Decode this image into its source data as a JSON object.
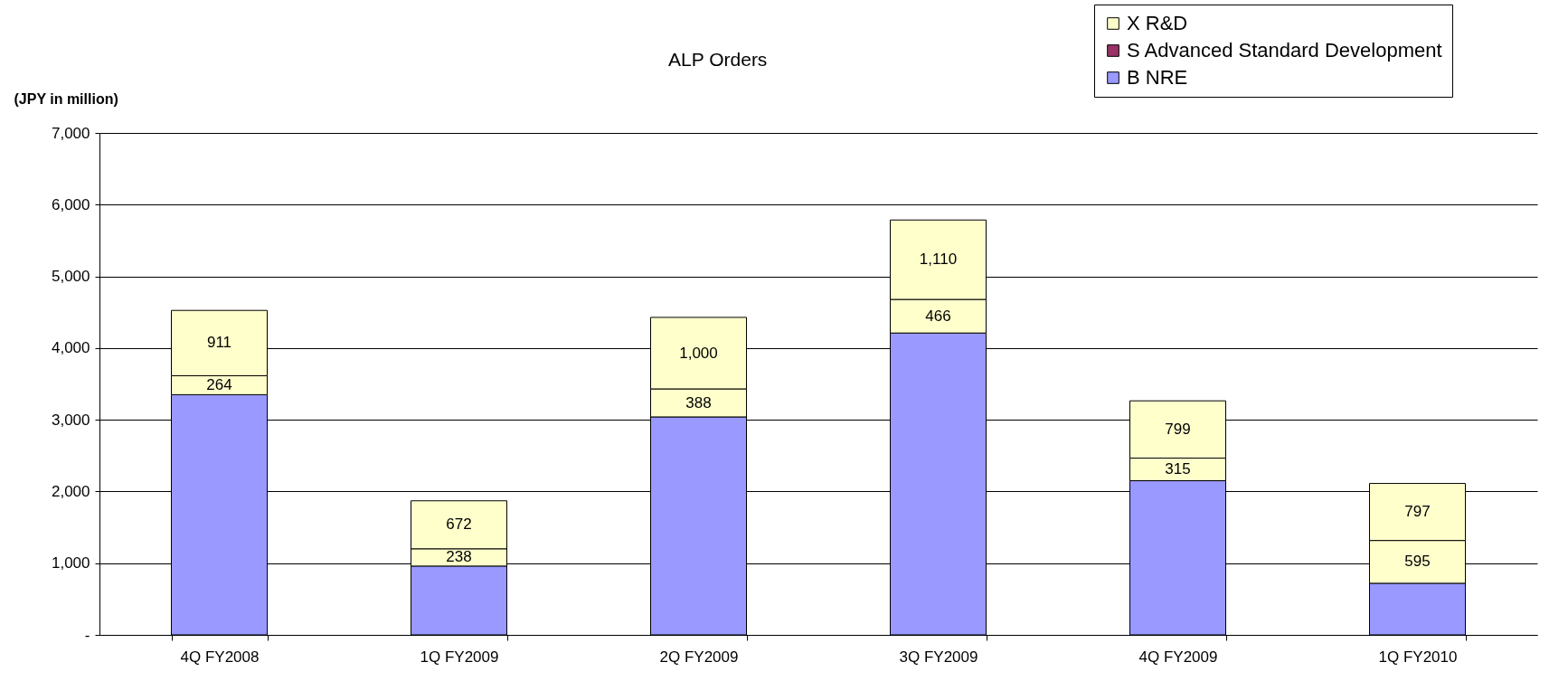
{
  "chart_data": {
    "type": "bar",
    "stacked": true,
    "categories": [
      "4Q FY2008",
      "1Q FY2009",
      "2Q FY2009",
      "3Q FY2009",
      "4Q FY2009",
      "1Q FY2010"
    ],
    "ylabel": "(JPY in million)",
    "ylim": [
      0,
      7000
    ],
    "yticks": [
      {
        "value": 0,
        "label": "-"
      },
      {
        "value": 1000,
        "label": "1,000"
      },
      {
        "value": 2000,
        "label": "2,000"
      },
      {
        "value": 3000,
        "label": "3,000"
      },
      {
        "value": 4000,
        "label": "4,000"
      },
      {
        "value": 5000,
        "label": "5,000"
      },
      {
        "value": 6000,
        "label": "6,000"
      },
      {
        "value": 7000,
        "label": "7,000"
      }
    ],
    "grid": "y",
    "legend": "top right",
    "annotations": [
      "ALP Orders"
    ],
    "series": [
      {
        "name": "B NRE",
        "color": "#9999ff",
        "values": [
          3350,
          960,
          3040,
          4210,
          2150,
          720
        ]
      },
      {
        "name": "S Advanced Standard Development",
        "color": "#993366",
        "values": [
          null,
          null,
          null,
          null,
          null,
          null
        ]
      },
      {
        "color": "#ffffcc",
        "values": [
          264,
          238,
          388,
          466,
          315,
          595
        ],
        "value_labels": [
          "264",
          "238",
          "388",
          "466",
          "315",
          "595"
        ]
      },
      {
        "name": "X R&D",
        "color": "#ffffcc",
        "values": [
          911,
          672,
          1000,
          1110,
          799,
          797
        ],
        "value_labels": [
          "911",
          "672",
          "1,000",
          "1,110",
          "799",
          "797"
        ]
      }
    ]
  }
}
